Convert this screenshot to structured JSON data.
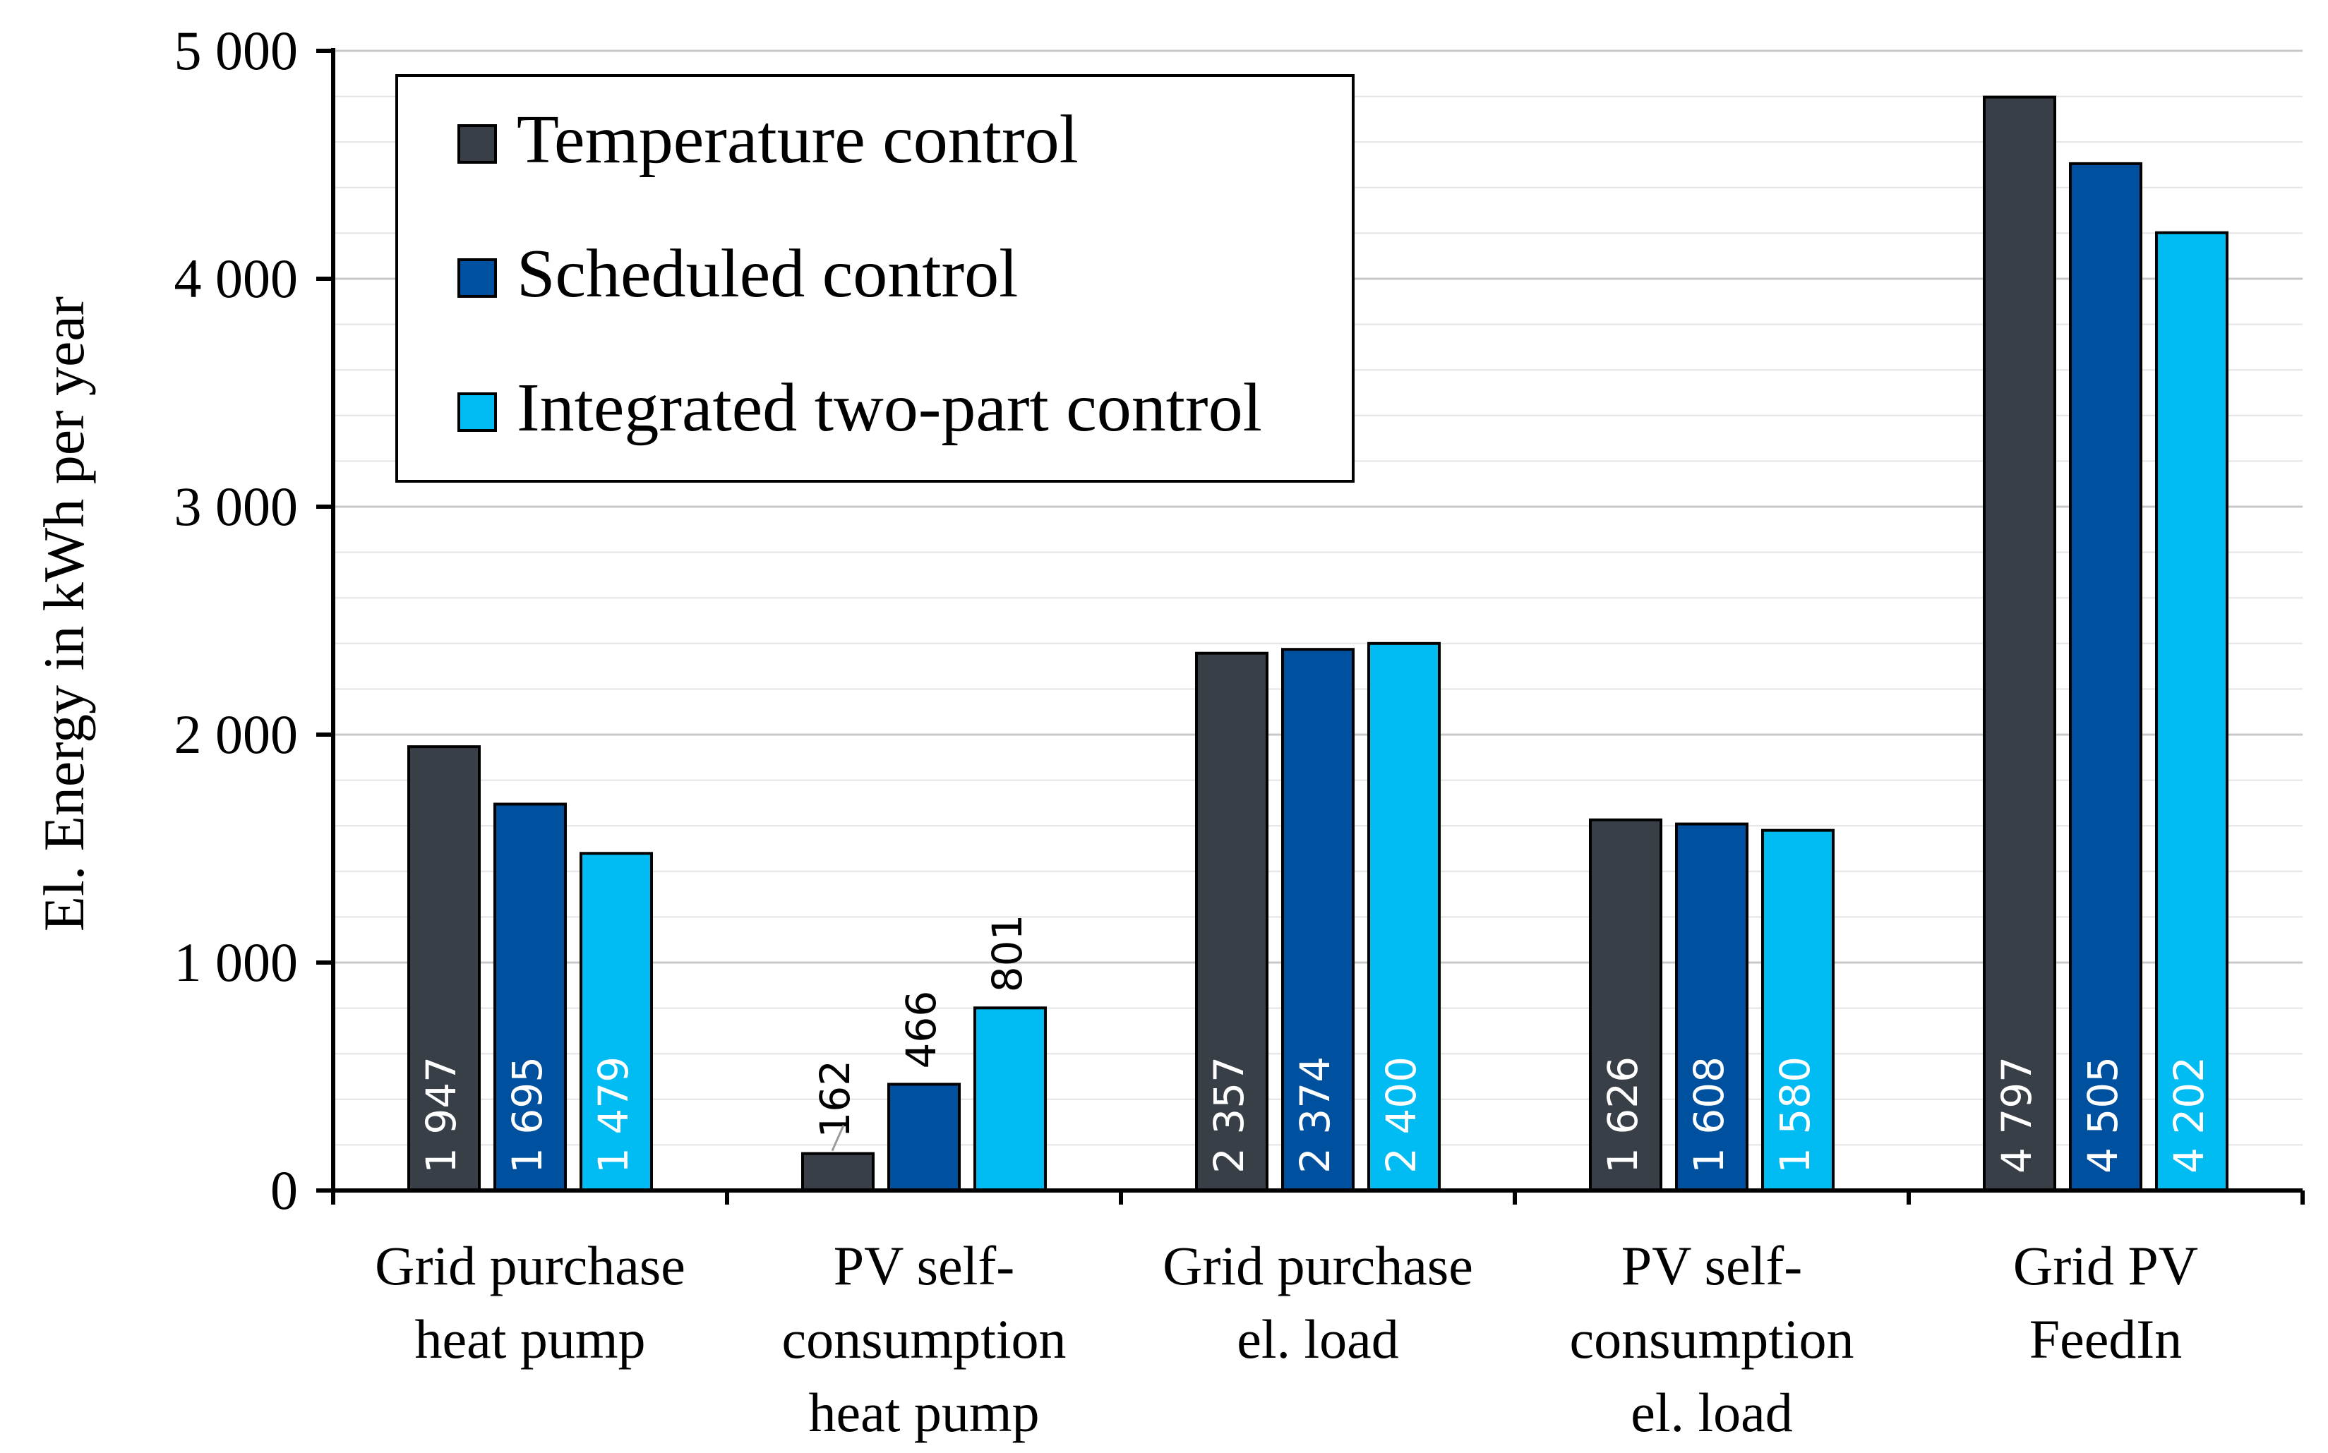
{
  "chart_data": {
    "type": "bar",
    "ylabel": "El. Energy in kWh per  year",
    "ylim": [
      0,
      5000
    ],
    "yticks": [
      0,
      1000,
      2000,
      3000,
      4000,
      5000
    ],
    "ytick_labels": [
      "0",
      "1 000",
      "2 000",
      "3 000",
      "4 000",
      "5 000"
    ],
    "grid": "horizontal",
    "legend_position": "top-left",
    "categories": [
      [
        "Grid purchase",
        "heat pump"
      ],
      [
        "PV self-",
        "consumption",
        "heat pump"
      ],
      [
        "Grid purchase",
        "el. load"
      ],
      [
        "PV self-",
        "consumption",
        "el. load"
      ],
      [
        "Grid PV",
        "FeedIn"
      ]
    ],
    "series": [
      {
        "name": "Temperature control",
        "color": "#383f47",
        "values": [
          1947,
          162,
          2357,
          1626,
          4797
        ],
        "labels": [
          "1 947",
          "162",
          "2 357",
          "1 626",
          "4 797"
        ]
      },
      {
        "name": "Scheduled control",
        "color": "#0050a0",
        "values": [
          1695,
          466,
          2374,
          1608,
          4505
        ],
        "labels": [
          "1 695",
          "466",
          "2 374",
          "1 608",
          "4 505"
        ]
      },
      {
        "name": "Integrated two-part control",
        "color": "#00bcf2",
        "values": [
          1479,
          801,
          2400,
          1580,
          4202
        ],
        "labels": [
          "1 479",
          "801",
          "2 400",
          "1 580",
          "4 202"
        ]
      }
    ]
  }
}
